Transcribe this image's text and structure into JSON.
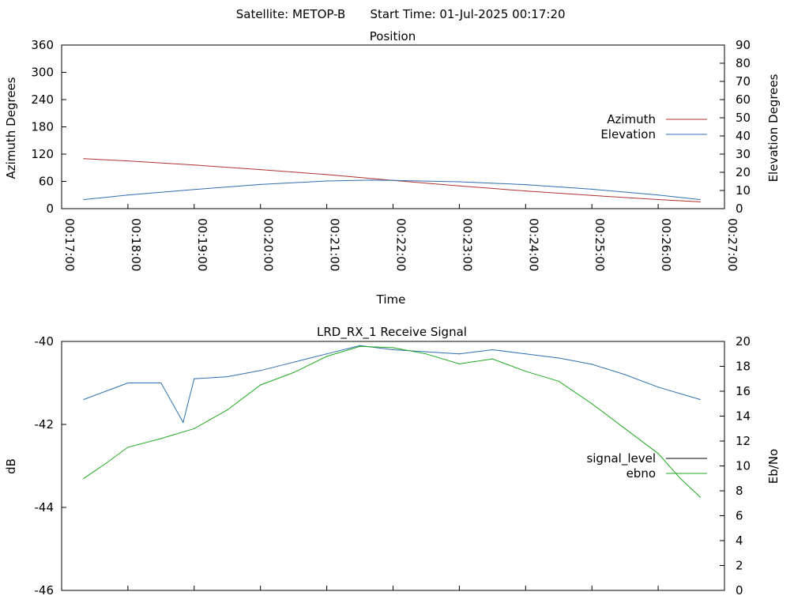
{
  "header": {
    "satellite_label": "Satellite: METOP-B",
    "start_label": "Start Time: 01-Jul-2025 00:17:20"
  },
  "chart_data": [
    {
      "type": "line",
      "title": "Position",
      "xlabel": "Time",
      "ylabel_left": "Azimuth Degrees",
      "ylabel_right": "Elevation Degrees",
      "x_ticks": [
        "00:17:00",
        "00:18:00",
        "00:19:00",
        "00:20:00",
        "00:21:00",
        "00:22:00",
        "00:23:00",
        "00:24:00",
        "00:25:00",
        "00:26:00",
        "00:27:00"
      ],
      "xlim": [
        "00:17:00",
        "00:27:00"
      ],
      "ylim_left": [
        0,
        360
      ],
      "yticks_left": [
        0,
        60,
        120,
        180,
        240,
        300,
        360
      ],
      "ylim_right": [
        0,
        90
      ],
      "yticks_right": [
        0,
        10,
        20,
        30,
        40,
        50,
        60,
        70,
        80,
        90
      ],
      "legend_position": "right",
      "series": [
        {
          "name": "Azimuth",
          "axis": "left",
          "color": "#b03030",
          "x": [
            "00:17:20",
            "00:18:00",
            "00:19:00",
            "00:20:00",
            "00:21:00",
            "00:22:00",
            "00:23:00",
            "00:24:00",
            "00:25:00",
            "00:26:00",
            "00:26:38"
          ],
          "values": [
            110,
            105,
            96,
            86,
            75,
            62,
            50,
            39,
            29,
            20,
            15
          ]
        },
        {
          "name": "Elevation",
          "axis": "right",
          "color": "#2f6fb0",
          "x": [
            "00:17:20",
            "00:18:00",
            "00:19:00",
            "00:20:00",
            "00:21:00",
            "00:21:40",
            "00:22:00",
            "00:23:00",
            "00:24:00",
            "00:25:00",
            "00:26:00",
            "00:26:38"
          ],
          "values": [
            5,
            7.5,
            10.5,
            13.3,
            15.2,
            15.7,
            15.5,
            14.8,
            13.2,
            10.7,
            7.5,
            5
          ]
        }
      ]
    },
    {
      "type": "line",
      "title": "LRD_RX_1 Receive Signal",
      "ylabel_left": "dB",
      "ylabel_right": "Eb/No",
      "ylim_left": [
        -46,
        -40
      ],
      "yticks_left": [
        -46,
        -44,
        -42,
        -40
      ],
      "ylim_right": [
        0,
        20
      ],
      "yticks_right": [
        0,
        2,
        4,
        6,
        8,
        10,
        12,
        14,
        16,
        18,
        20
      ],
      "x_ticks": [
        "00:17:00",
        "00:18:00",
        "00:19:00",
        "00:20:00",
        "00:21:00",
        "00:22:00",
        "00:23:00",
        "00:24:00",
        "00:25:00",
        "00:26:00",
        "00:27:00"
      ],
      "xlim": [
        "00:17:00",
        "00:27:00"
      ],
      "legend_position": "right",
      "series": [
        {
          "name": "signal_level",
          "axis": "left",
          "color": "#2f6fb0",
          "x": [
            "00:17:20",
            "00:17:30",
            "00:17:45",
            "00:18:00",
            "00:18:30",
            "00:18:50",
            "00:19:00",
            "00:19:30",
            "00:20:00",
            "00:20:30",
            "00:21:00",
            "00:21:30",
            "00:22:00",
            "00:22:30",
            "00:23:00",
            "00:23:30",
            "00:24:00",
            "00:24:30",
            "00:25:00",
            "00:25:30",
            "00:26:00",
            "00:26:38"
          ],
          "values": [
            -41.4,
            -41.3,
            -41.15,
            -41.0,
            -41.0,
            -41.95,
            -40.9,
            -40.85,
            -40.7,
            -40.5,
            -40.3,
            -40.1,
            -40.2,
            -40.25,
            -40.3,
            -40.2,
            -40.3,
            -40.4,
            -40.55,
            -40.8,
            -41.1,
            -41.4
          ]
        },
        {
          "name": "ebno",
          "axis": "right",
          "color": "#1faa1f",
          "x": [
            "00:17:20",
            "00:17:40",
            "00:18:00",
            "00:18:30",
            "00:19:00",
            "00:19:30",
            "00:20:00",
            "00:20:30",
            "00:21:00",
            "00:21:30",
            "00:22:00",
            "00:22:30",
            "00:23:00",
            "00:23:30",
            "00:24:00",
            "00:24:30",
            "00:25:00",
            "00:25:30",
            "00:26:00",
            "00:26:20",
            "00:26:38"
          ],
          "values": [
            9.0,
            10.2,
            11.5,
            12.2,
            13.0,
            14.5,
            16.5,
            17.5,
            18.8,
            19.6,
            19.5,
            19.0,
            18.2,
            18.6,
            17.6,
            16.8,
            15.0,
            13.0,
            11.0,
            9.0,
            7.5
          ]
        }
      ]
    }
  ]
}
